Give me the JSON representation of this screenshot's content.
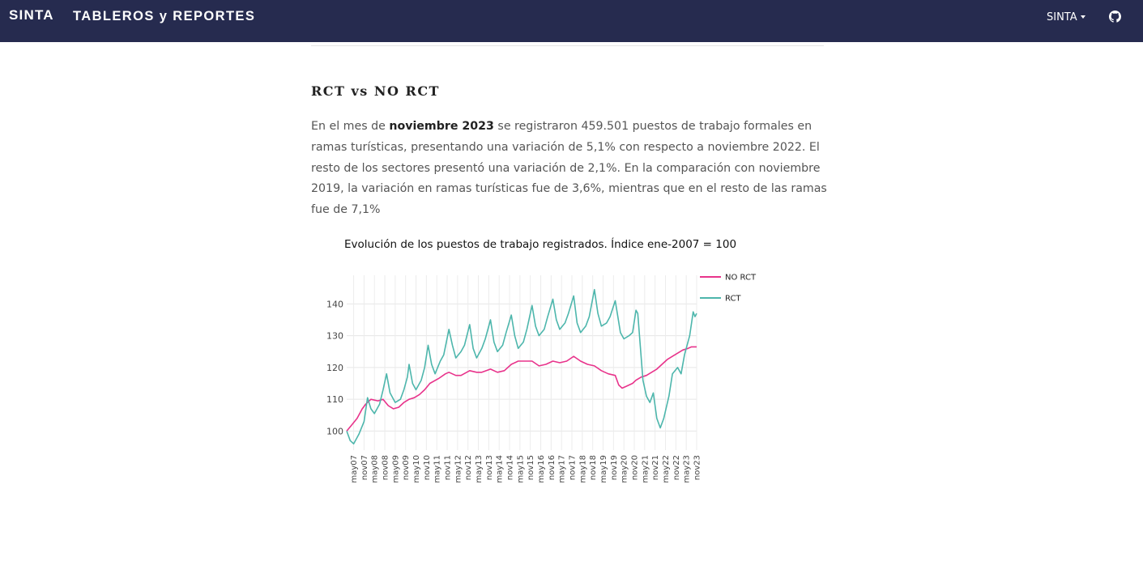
{
  "navbar": {
    "brand": "SINTA",
    "title": "TABLEROS y REPORTES",
    "menu_label": "SINTA",
    "github_icon": "github-icon",
    "background": "#262b4f"
  },
  "section": {
    "title": "RCT vs NO RCT"
  },
  "paragraph": {
    "p1": "En el mes de ",
    "bold": "noviembre 2023",
    "p2": " se registraron 459.501 puestos de trabajo formales en ramas turísticas, presentando una variación de 5,1% con respecto a noviembre 2022. El resto de los sectores presentó una variación de 2,1%. En la comparación con noviembre 2019, la variación en ramas turísticas fue de 3,6%, mientras que en el resto de las ramas fue de 7,1%"
  },
  "chart_data": {
    "type": "line",
    "title": "Evolución de los puestos de trabajo registrados. Índice ene-2007 = 100",
    "xlabel": "",
    "ylabel": "",
    "ylim": [
      94,
      149
    ],
    "yticks": [
      100,
      110,
      120,
      130,
      140
    ],
    "x_start": "ene07",
    "x_end": "nov23",
    "x_tick_labels": [
      "may07",
      "nov07",
      "may08",
      "nov08",
      "may09",
      "nov09",
      "may10",
      "nov10",
      "may11",
      "nov11",
      "may12",
      "nov12",
      "may13",
      "nov13",
      "may14",
      "nov14",
      "may15",
      "nov15",
      "may16",
      "nov16",
      "may17",
      "nov17",
      "may18",
      "nov18",
      "may19",
      "nov19",
      "may20",
      "nov20",
      "may21",
      "nov21",
      "may22",
      "nov22",
      "may23",
      "nov23"
    ],
    "grid": true,
    "legend_position": "top-right",
    "series": [
      {
        "name": "NO RCT",
        "color": "#e8338b",
        "points": [
          [
            "ene07",
            100
          ],
          [
            "abr07",
            102
          ],
          [
            "jul07",
            104
          ],
          [
            "oct07",
            107
          ],
          [
            "dic07",
            108.5
          ],
          [
            "mar08",
            110
          ],
          [
            "jul08",
            109.5
          ],
          [
            "oct08",
            110
          ],
          [
            "ene09",
            108
          ],
          [
            "abr09",
            107
          ],
          [
            "jul09",
            107.5
          ],
          [
            "oct09",
            109
          ],
          [
            "ene10",
            110
          ],
          [
            "abr10",
            110.5
          ],
          [
            "jul10",
            111.5
          ],
          [
            "oct10",
            113
          ],
          [
            "ene11",
            115
          ],
          [
            "jun11",
            116.5
          ],
          [
            "oct11",
            118
          ],
          [
            "dic11",
            118.5
          ],
          [
            "abr12",
            117.5
          ],
          [
            "jul12",
            117.5
          ],
          [
            "dic12",
            119
          ],
          [
            "abr13",
            118.5
          ],
          [
            "jul13",
            118.5
          ],
          [
            "dic13",
            119.5
          ],
          [
            "abr14",
            118.5
          ],
          [
            "ago14",
            119
          ],
          [
            "dic14",
            121
          ],
          [
            "abr15",
            122
          ],
          [
            "ago15",
            122
          ],
          [
            "dic15",
            122
          ],
          [
            "abr16",
            120.5
          ],
          [
            "ago16",
            121
          ],
          [
            "dic16",
            122
          ],
          [
            "abr17",
            121.5
          ],
          [
            "ago17",
            122
          ],
          [
            "dic17",
            123.5
          ],
          [
            "abr18",
            122
          ],
          [
            "ago18",
            121
          ],
          [
            "dic18",
            120.5
          ],
          [
            "abr19",
            119
          ],
          [
            "ago19",
            118
          ],
          [
            "dic19",
            117.5
          ],
          [
            "feb20",
            114.5
          ],
          [
            "abr20",
            113.5
          ],
          [
            "jun20",
            114
          ],
          [
            "ago20",
            114.5
          ],
          [
            "oct20",
            115
          ],
          [
            "dic20",
            116
          ],
          [
            "mar21",
            117
          ],
          [
            "jun21",
            117.5
          ],
          [
            "sep21",
            118.5
          ],
          [
            "dic21",
            119.5
          ],
          [
            "mar22",
            121
          ],
          [
            "jun22",
            122.5
          ],
          [
            "sep22",
            123.5
          ],
          [
            "dic22",
            124.5
          ],
          [
            "mar23",
            125.5
          ],
          [
            "jun23",
            126
          ],
          [
            "ago23",
            126.5
          ],
          [
            "nov23",
            126.5
          ]
        ]
      },
      {
        "name": "RCT",
        "color": "#4db6ac",
        "points": [
          [
            "ene07",
            100
          ],
          [
            "mar07",
            97
          ],
          [
            "may07",
            96
          ],
          [
            "ago07",
            99
          ],
          [
            "nov07",
            103
          ],
          [
            "ene08",
            110.5
          ],
          [
            "mar08",
            107
          ],
          [
            "may08",
            105.5
          ],
          [
            "ago08",
            108.5
          ],
          [
            "oct08",
            113
          ],
          [
            "dic08",
            118
          ],
          [
            "feb09",
            112
          ],
          [
            "may09",
            109
          ],
          [
            "ago09",
            110
          ],
          [
            "oct09",
            113
          ],
          [
            "dic09",
            117
          ],
          [
            "ene10",
            121
          ],
          [
            "mar10",
            115
          ],
          [
            "may10",
            113
          ],
          [
            "ago10",
            116
          ],
          [
            "oct10",
            120
          ],
          [
            "dic10",
            127
          ],
          [
            "feb11",
            121
          ],
          [
            "abr11",
            118
          ],
          [
            "jul11",
            122
          ],
          [
            "sep11",
            124
          ],
          [
            "dic11",
            132
          ],
          [
            "feb12",
            127
          ],
          [
            "abr12",
            123
          ],
          [
            "jul12",
            125
          ],
          [
            "sep12",
            127
          ],
          [
            "dic12",
            133.5
          ],
          [
            "feb13",
            126
          ],
          [
            "abr13",
            123
          ],
          [
            "jul13",
            126
          ],
          [
            "sep13",
            129
          ],
          [
            "dic13",
            135
          ],
          [
            "feb14",
            128
          ],
          [
            "abr14",
            125
          ],
          [
            "jul14",
            127
          ],
          [
            "sep14",
            131
          ],
          [
            "dic14",
            136.5
          ],
          [
            "feb15",
            130
          ],
          [
            "abr15",
            126
          ],
          [
            "jul15",
            128
          ],
          [
            "sep15",
            132
          ],
          [
            "dic15",
            139.5
          ],
          [
            "feb16",
            133
          ],
          [
            "abr16",
            130
          ],
          [
            "jul16",
            132
          ],
          [
            "sep16",
            136
          ],
          [
            "dic16",
            141.5
          ],
          [
            "feb17",
            135
          ],
          [
            "abr17",
            132
          ],
          [
            "jul17",
            134
          ],
          [
            "sep17",
            137
          ],
          [
            "dic17",
            142.5
          ],
          [
            "feb18",
            134
          ],
          [
            "abr18",
            131
          ],
          [
            "jul18",
            133
          ],
          [
            "sep18",
            136
          ],
          [
            "dic18",
            144.5
          ],
          [
            "feb19",
            137
          ],
          [
            "abr19",
            133
          ],
          [
            "jul19",
            134
          ],
          [
            "sep19",
            136
          ],
          [
            "dic19",
            141
          ],
          [
            "mar20",
            131
          ],
          [
            "may20",
            129
          ],
          [
            "ago20",
            130
          ],
          [
            "oct20",
            131
          ],
          [
            "dic20",
            138
          ],
          [
            "ene21",
            137
          ],
          [
            "abr21",
            116
          ],
          [
            "jun21",
            111
          ],
          [
            "ago21",
            109
          ],
          [
            "oct21",
            112
          ],
          [
            "dic21",
            104
          ],
          [
            "feb22",
            101
          ],
          [
            "abr22",
            104
          ],
          [
            "jul22",
            111
          ],
          [
            "sep22",
            118
          ],
          [
            "dic22",
            120
          ],
          [
            "feb23",
            118
          ],
          [
            "abr23",
            124
          ],
          [
            "jul23",
            130
          ],
          [
            "sep23",
            137.5
          ],
          [
            "oct23",
            136
          ],
          [
            "nov23",
            137
          ]
        ]
      }
    ]
  }
}
